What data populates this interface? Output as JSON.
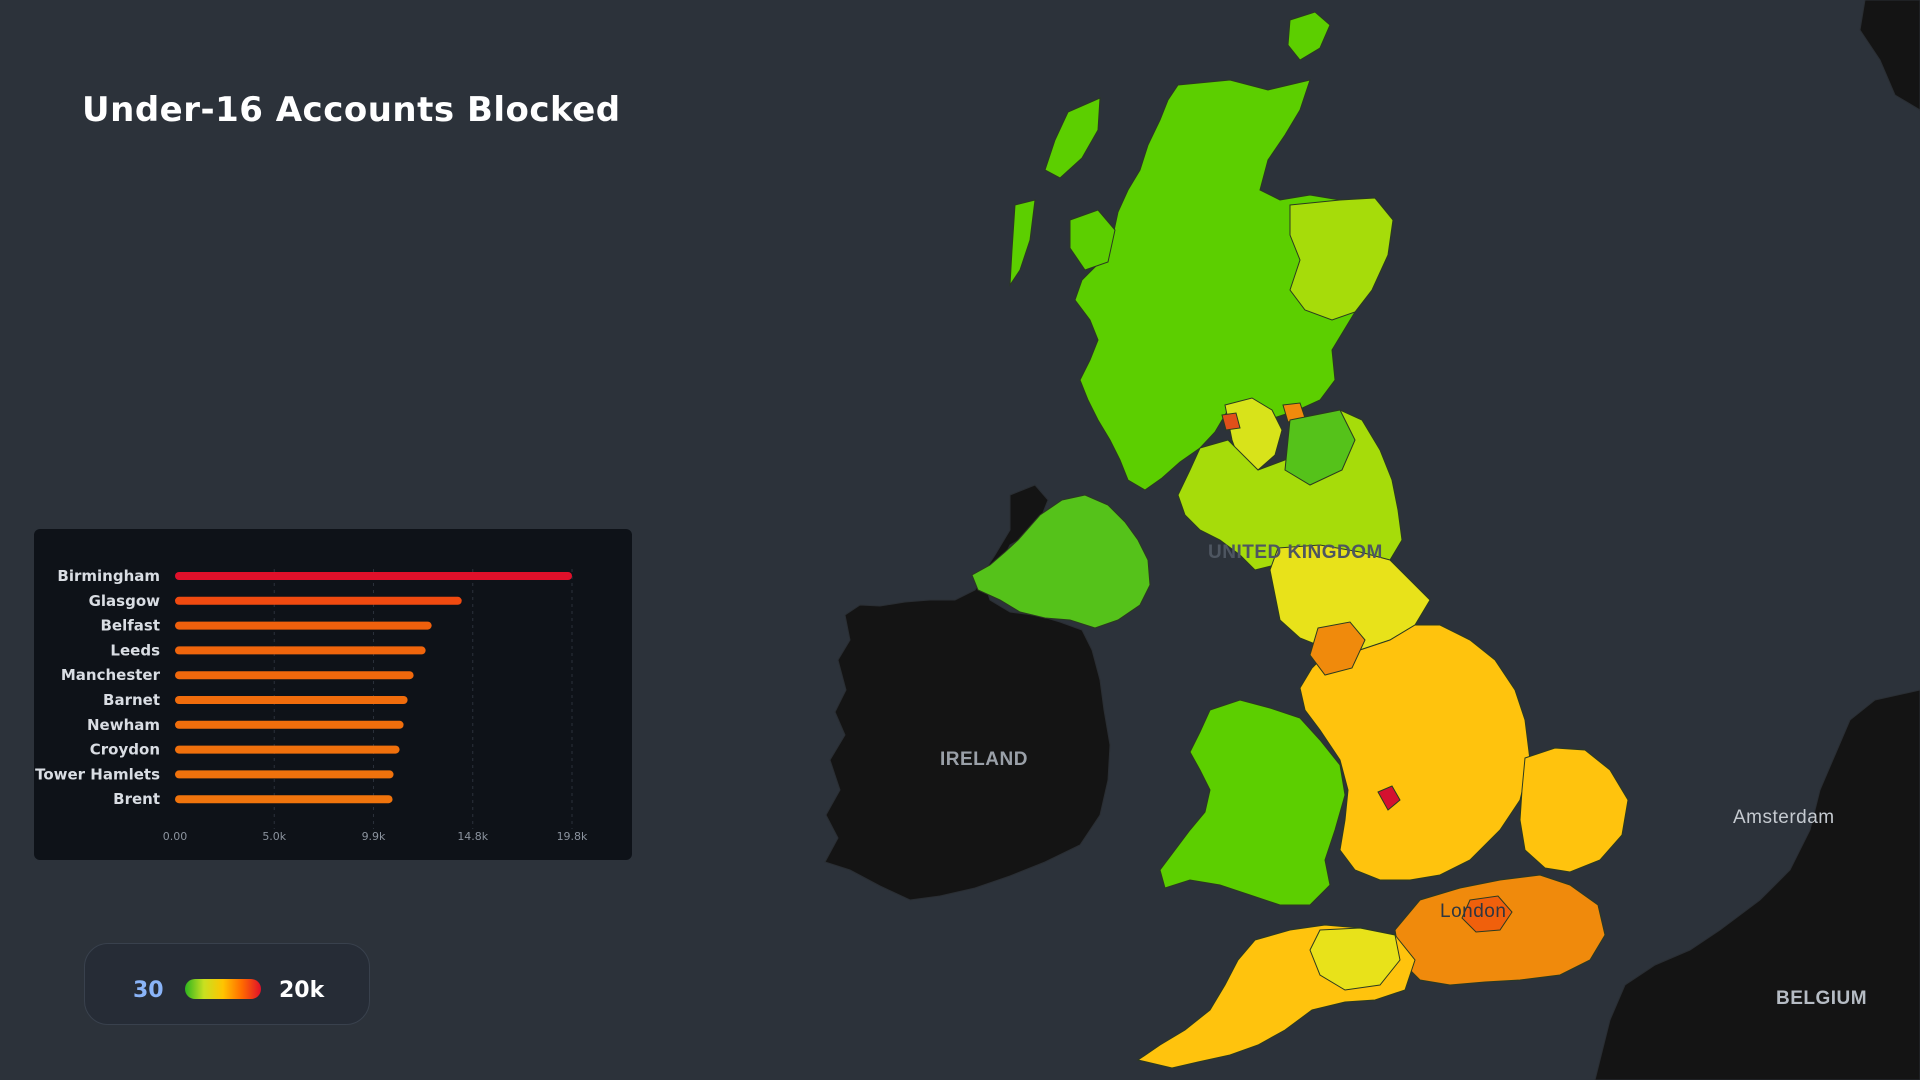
{
  "page": {
    "title": "Under-16 Accounts Blocked"
  },
  "map": {
    "labels": {
      "uk": "UNITED KINGDOM",
      "ireland": "IRELAND",
      "amsterdam": "Amsterdam",
      "belgium": "BELGIUM",
      "london": "London"
    },
    "colors": {
      "background": "#2c323a",
      "land_dark": "#141414",
      "low": "#5ccf00",
      "mid": "#e8e21a",
      "high": "#ffc30d",
      "very_high": "#f08a0c",
      "max": "#d41030"
    }
  },
  "legend": {
    "min_label": "30",
    "max_label": "20k",
    "gradient": [
      "#2db51f",
      "#c9e020",
      "#ffc400",
      "#ff6a00",
      "#e0102a"
    ]
  },
  "chart_data": {
    "type": "bar",
    "orientation": "horizontal",
    "categories": [
      "Birmingham",
      "Glasgow",
      "Belfast",
      "Leeds",
      "Manchester",
      "Barnet",
      "Newham",
      "Croydon",
      "Tower Hamlets",
      "Brent"
    ],
    "values": [
      19800,
      14300,
      12800,
      12500,
      11900,
      11600,
      11400,
      11200,
      10900,
      10850
    ],
    "colors": [
      "#e0102a",
      "#f04a10",
      "#f0600c",
      "#f0650c",
      "#f0680c",
      "#f06c0c",
      "#f06e0c",
      "#f0700c",
      "#f0720c",
      "#f0740c"
    ],
    "xlim": [
      0,
      19800
    ],
    "xticks": [
      "0.00",
      "5.0k",
      "9.9k",
      "14.8k",
      "19.8k"
    ],
    "grid": "dashed-vertical"
  }
}
